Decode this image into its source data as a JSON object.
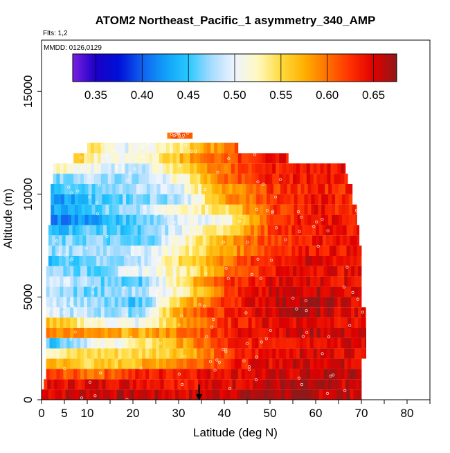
{
  "chart_data": {
    "type": "heatmap",
    "title": "ATOM2 Northeast_Pacific_1 asymmetry_340_AMP",
    "flights_label": "Flts: 1,2",
    "date_label": "MMDD: 0126,0129",
    "xlabel": "Latitude (deg N)",
    "ylabel": "Altitude (m)",
    "xlim": [
      0,
      85
    ],
    "ylim": [
      0,
      17500
    ],
    "x_ticks": [
      0,
      5,
      10,
      20,
      30,
      40,
      50,
      60,
      70,
      80
    ],
    "x_minor_ticks": [
      15,
      25,
      35,
      45,
      55,
      65,
      75,
      85
    ],
    "y_ticks": [
      0,
      5000,
      10000,
      15000
    ],
    "colorbar": {
      "range": [
        0.325,
        0.675
      ],
      "ticks": [
        0.35,
        0.4,
        0.45,
        0.5,
        0.55,
        0.6,
        0.65
      ],
      "tick_labels": [
        "0.35",
        "0.40",
        "0.45",
        "0.50",
        "0.55",
        "0.60",
        "0.65"
      ],
      "stops": [
        {
          "v": 0.325,
          "color": "#7b1fe0"
        },
        {
          "v": 0.35,
          "color": "#1a00c8"
        },
        {
          "v": 0.375,
          "color": "#0010d8"
        },
        {
          "v": 0.4,
          "color": "#1060f0"
        },
        {
          "v": 0.425,
          "color": "#10a0f8"
        },
        {
          "v": 0.45,
          "color": "#28c8ff"
        },
        {
          "v": 0.475,
          "color": "#a8dcff"
        },
        {
          "v": 0.5,
          "color": "#eef4ff"
        },
        {
          "v": 0.525,
          "color": "#fff8c0"
        },
        {
          "v": 0.55,
          "color": "#ffdc40"
        },
        {
          "v": 0.575,
          "color": "#ffb000"
        },
        {
          "v": 0.6,
          "color": "#ff7000"
        },
        {
          "v": 0.625,
          "color": "#ff3000"
        },
        {
          "v": 0.65,
          "color": "#e00000"
        },
        {
          "v": 0.675,
          "color": "#901818"
        }
      ]
    },
    "marker": {
      "latitude": 34.5,
      "symbol": "down-arrow"
    },
    "layers": [
      {
        "z0": 0,
        "z1": 500,
        "lat_start": 0,
        "lat_end": 70,
        "values": [
          0.65,
          0.66,
          0.66,
          0.65,
          0.66,
          0.67,
          0.66,
          0.66
        ]
      },
      {
        "z0": 500,
        "z1": 1000,
        "lat_start": 0.5,
        "lat_end": 70,
        "values": [
          0.64,
          0.65,
          0.65,
          0.64,
          0.65,
          0.66,
          0.66,
          0.65
        ]
      },
      {
        "z0": 1000,
        "z1": 1500,
        "lat_start": 1,
        "lat_end": 70,
        "values": [
          0.62,
          0.6,
          0.63,
          0.64,
          0.65,
          0.65,
          0.66,
          0.66
        ]
      },
      {
        "z0": 1500,
        "z1": 2000,
        "lat_start": 1,
        "lat_end": 70,
        "values": [
          0.58,
          0.55,
          0.57,
          0.6,
          0.63,
          0.65,
          0.66,
          0.65
        ]
      },
      {
        "z0": 2000,
        "z1": 2500,
        "lat_start": 1,
        "lat_end": 71,
        "values": [
          0.53,
          0.55,
          0.55,
          0.57,
          0.62,
          0.65,
          0.65,
          0.65
        ]
      },
      {
        "z0": 2500,
        "z1": 3000,
        "lat_start": 1,
        "lat_end": 71,
        "values": [
          0.45,
          0.5,
          0.53,
          0.58,
          0.63,
          0.64,
          0.65,
          0.65
        ]
      },
      {
        "z0": 3000,
        "z1": 3500,
        "lat_start": 1,
        "lat_end": 71,
        "values": [
          0.6,
          0.58,
          0.57,
          0.6,
          0.64,
          0.65,
          0.66,
          0.65
        ]
      },
      {
        "z0": 3500,
        "z1": 4000,
        "lat_start": 1,
        "lat_end": 71,
        "values": [
          0.57,
          0.52,
          0.5,
          0.58,
          0.63,
          0.65,
          0.65,
          0.64
        ]
      },
      {
        "z0": 4000,
        "z1": 4500,
        "lat_start": 1,
        "lat_end": 71,
        "values": [
          0.49,
          0.48,
          0.47,
          0.6,
          0.63,
          0.66,
          0.66,
          0.64
        ]
      },
      {
        "z0": 4500,
        "z1": 5000,
        "lat_start": 1,
        "lat_end": 70,
        "values": [
          0.5,
          0.47,
          0.45,
          0.56,
          0.63,
          0.66,
          0.67,
          0.64
        ]
      },
      {
        "z0": 5000,
        "z1": 5500,
        "lat_start": 1,
        "lat_end": 70,
        "values": [
          0.48,
          0.46,
          0.48,
          0.53,
          0.62,
          0.65,
          0.66,
          0.64
        ]
      },
      {
        "z0": 5500,
        "z1": 6000,
        "lat_start": 1,
        "lat_end": 70,
        "values": [
          0.5,
          0.47,
          0.45,
          0.55,
          0.62,
          0.65,
          0.65,
          0.64
        ]
      },
      {
        "z0": 6000,
        "z1": 6500,
        "lat_start": 1,
        "lat_end": 70,
        "values": [
          0.48,
          0.46,
          0.5,
          0.53,
          0.6,
          0.64,
          0.65,
          0.64
        ]
      },
      {
        "z0": 6500,
        "z1": 7000,
        "lat_start": 1.5,
        "lat_end": 70,
        "values": [
          0.45,
          0.47,
          0.48,
          0.55,
          0.6,
          0.64,
          0.65,
          0.64
        ]
      },
      {
        "z0": 7000,
        "z1": 7500,
        "lat_start": 1.5,
        "lat_end": 70,
        "values": [
          0.47,
          0.48,
          0.49,
          0.53,
          0.58,
          0.63,
          0.64,
          0.64
        ]
      },
      {
        "z0": 7500,
        "z1": 8000,
        "lat_start": 1.5,
        "lat_end": 69.5,
        "values": [
          0.46,
          0.47,
          0.45,
          0.52,
          0.58,
          0.62,
          0.64,
          0.64
        ]
      },
      {
        "z0": 8000,
        "z1": 8500,
        "lat_start": 1.5,
        "lat_end": 69.5,
        "values": [
          0.44,
          0.46,
          0.45,
          0.5,
          0.55,
          0.62,
          0.64,
          0.64
        ]
      },
      {
        "z0": 8500,
        "z1": 9000,
        "lat_start": 2,
        "lat_end": 69,
        "values": [
          0.41,
          0.43,
          0.46,
          0.49,
          0.52,
          0.62,
          0.64,
          0.64
        ]
      },
      {
        "z0": 9000,
        "z1": 9500,
        "lat_start": 2,
        "lat_end": 69,
        "values": [
          0.43,
          0.46,
          0.48,
          0.52,
          0.55,
          0.62,
          0.64,
          0.63
        ]
      },
      {
        "z0": 9500,
        "z1": 10000,
        "lat_start": 2,
        "lat_end": 68,
        "values": [
          0.42,
          0.45,
          0.47,
          0.48,
          0.58,
          0.62,
          0.64,
          0.63
        ]
      },
      {
        "z0": 10000,
        "z1": 10500,
        "lat_start": 2,
        "lat_end": 68,
        "values": [
          0.44,
          0.46,
          0.48,
          0.5,
          0.58,
          0.62,
          0.63,
          0.63
        ]
      },
      {
        "z0": 10500,
        "z1": 11000,
        "lat_start": 2.5,
        "lat_end": 67,
        "values": [
          0.47,
          0.48,
          0.47,
          0.52,
          0.6,
          0.63,
          0.64,
          0.63
        ]
      },
      {
        "z0": 11000,
        "z1": 11500,
        "lat_start": 2.5,
        "lat_end": 66.5,
        "values": [
          0.52,
          0.5,
          0.48,
          0.55,
          0.6,
          0.63,
          0.64,
          0.64
        ]
      },
      {
        "z0": 11500,
        "z1": 12000,
        "lat_start": 7,
        "lat_end": 54,
        "values": [
          0.56,
          0.5,
          0.52,
          0.57,
          0.61,
          0.63,
          0.64
        ]
      },
      {
        "z0": 12000,
        "z1": 12500,
        "lat_start": 10,
        "lat_end": 43,
        "values": [
          0.55,
          0.5,
          0.52,
          0.57,
          0.61
        ]
      },
      {
        "z0": 12700,
        "z1": 13000,
        "lat_start": 27.5,
        "lat_end": 33,
        "values": [
          0.6,
          0.61,
          0.62
        ]
      }
    ]
  }
}
